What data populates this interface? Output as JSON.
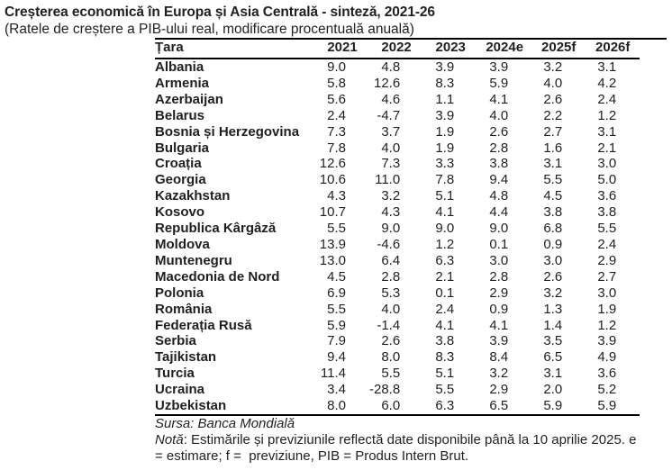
{
  "title": "Creșterea economică în Europa și Asia Centrală - sinteză, 2021-26",
  "subtitle": "(Ratele de creștere a PIB-ului real, modificare procentuală anuală)",
  "table": {
    "columns": [
      "Țara",
      "2021",
      "2022",
      "2023",
      "2024e",
      "2025f",
      "2026f"
    ],
    "rows": [
      {
        "country": "Albania",
        "values": [
          "9.0",
          "4.8",
          "3.9",
          "3.9",
          "3.2",
          "3.1"
        ]
      },
      {
        "country": "Armenia",
        "values": [
          "5.8",
          "12.6",
          "8.3",
          "5.9",
          "4.0",
          "4.2"
        ]
      },
      {
        "country": "Azerbaijan",
        "values": [
          "5.6",
          "4.6",
          "1.1",
          "4.1",
          "2.6",
          "2.4"
        ]
      },
      {
        "country": "Belarus",
        "values": [
          "2.4",
          "-4.7",
          "3.9",
          "4.0",
          "2.2",
          "1.2"
        ]
      },
      {
        "country": "Bosnia și Herzegovina",
        "values": [
          "7.3",
          "3.7",
          "1.9",
          "2.6",
          "2.7",
          "3.1"
        ]
      },
      {
        "country": "Bulgaria",
        "values": [
          "7.8",
          "4.0",
          "1.9",
          "2.8",
          "1.6",
          "2.1"
        ]
      },
      {
        "country": "Croația",
        "values": [
          "12.6",
          "7.3",
          "3.3",
          "3.8",
          "3.1",
          "3.0"
        ]
      },
      {
        "country": "Georgia",
        "values": [
          "10.6",
          "11.0",
          "7.8",
          "9.4",
          "5.5",
          "5.0"
        ]
      },
      {
        "country": "Kazakhstan",
        "values": [
          "4.3",
          "3.2",
          "5.1",
          "4.8",
          "4.5",
          "3.6"
        ]
      },
      {
        "country": "Kosovo",
        "values": [
          "10.7",
          "4.3",
          "4.1",
          "4.4",
          "3.8",
          "3.8"
        ]
      },
      {
        "country": "Republica Kârgâză",
        "values": [
          "5.5",
          "9.0",
          "9.0",
          "9.0",
          "6.8",
          "5.5"
        ]
      },
      {
        "country": "Moldova",
        "values": [
          "13.9",
          "-4.6",
          "1.2",
          "0.1",
          "0.9",
          "2.4"
        ]
      },
      {
        "country": "Muntenegru",
        "values": [
          "13.0",
          "6.4",
          "6.3",
          "3.0",
          "3.0",
          "2.9"
        ]
      },
      {
        "country": "Macedonia de Nord",
        "values": [
          "4.5",
          "2.8",
          "2.1",
          "2.8",
          "2.6",
          "2.7"
        ]
      },
      {
        "country": "Polonia",
        "values": [
          "6.9",
          "5.3",
          "0.1",
          "2.9",
          "3.2",
          "3.0"
        ]
      },
      {
        "country": "România",
        "values": [
          "5.5",
          "4.0",
          "2.4",
          "0.9",
          "1.3",
          "1.9"
        ]
      },
      {
        "country": "Federația Rusă",
        "values": [
          "5.9",
          "-1.4",
          "4.1",
          "4.1",
          "1.4",
          "1.2"
        ]
      },
      {
        "country": "Serbia",
        "values": [
          "7.9",
          "2.6",
          "3.8",
          "3.9",
          "3.5",
          "3.9"
        ]
      },
      {
        "country": "Tajikistan",
        "values": [
          "9.4",
          "8.0",
          "8.3",
          "8.4",
          "6.5",
          "4.9"
        ]
      },
      {
        "country": "Turcia",
        "values": [
          "11.4",
          "5.5",
          "5.1",
          "3.2",
          "3.1",
          "3.6"
        ]
      },
      {
        "country": "Ucraina",
        "values": [
          "3.4",
          "-28.8",
          "5.5",
          "2.9",
          "2.0",
          "5.2"
        ]
      },
      {
        "country": "Uzbekistan",
        "values": [
          "8.0",
          "6.0",
          "6.3",
          "6.5",
          "5.9",
          "5.9"
        ]
      }
    ]
  },
  "footer": {
    "source": "Sursa: Banca Mondială",
    "note_label": "Notă",
    "note_text": ": Estimările și previziunile reflectă date disponibile până la 10 aprilie 2025. e = estimare; f =  previziune, PIB = Produs Intern Brut."
  },
  "colors": {
    "text": "#1f1f1f",
    "rule": "#000000",
    "background": "#ffffff"
  }
}
